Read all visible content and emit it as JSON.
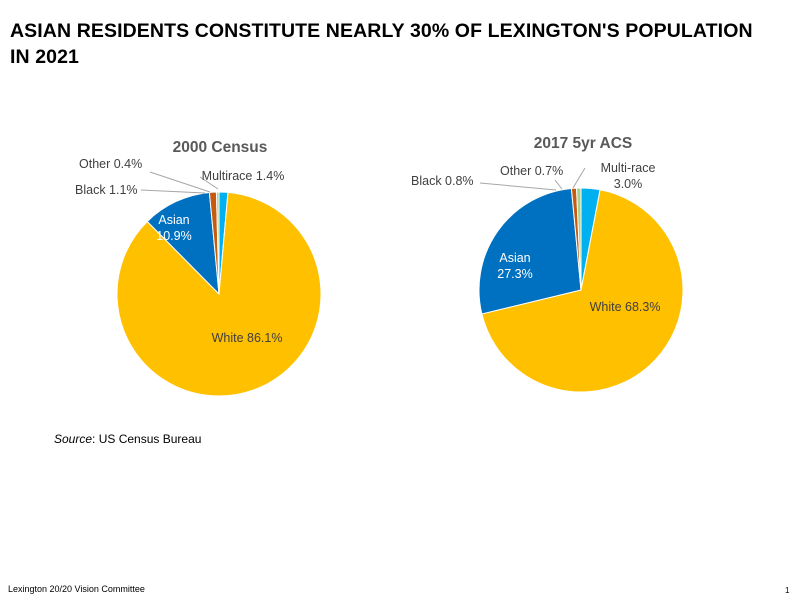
{
  "slide": {
    "title": "ASIAN RESIDENTS CONSTITUTE NEARLY 30% OF LEXINGTON'S POPULATION IN 2021",
    "source_label": "Source",
    "source_text": ": US Census Bureau",
    "footer": "Lexington 20/20 Vision Committee",
    "page_number": "1"
  },
  "colors": {
    "white": "#FFC000",
    "asian": "#0070C0",
    "black": "#C55A11",
    "other": "#A9D18E",
    "multi": "#00B0F0"
  },
  "chart_data": [
    {
      "type": "pie",
      "title": "2000 Census",
      "slices": [
        {
          "key": "multi",
          "label": "Multirace",
          "text": "Multirace 1.4%",
          "value": 1.4
        },
        {
          "key": "white",
          "label": "White",
          "text": "White 86.1%",
          "value": 86.1
        },
        {
          "key": "asian",
          "label": "Asian",
          "text": [
            "Asian",
            "10.9%"
          ],
          "value": 10.9
        },
        {
          "key": "black",
          "label": "Black",
          "text": "Black 1.1%",
          "value": 1.1
        },
        {
          "key": "other",
          "label": "Other",
          "text": "Other 0.4%",
          "value": 0.4
        }
      ]
    },
    {
      "type": "pie",
      "title": "2017 5yr ACS",
      "slices": [
        {
          "key": "multi",
          "label": "Multi-race",
          "text": [
            "Multi-race",
            "3.0%"
          ],
          "value": 3.0
        },
        {
          "key": "white",
          "label": "White",
          "text": "White 68.3%",
          "value": 68.3
        },
        {
          "key": "asian",
          "label": "Asian",
          "text": [
            "Asian",
            "27.3%"
          ],
          "value": 27.3
        },
        {
          "key": "black",
          "label": "Black",
          "text": "Black  0.8%",
          "value": 0.8
        },
        {
          "key": "other",
          "label": "Other",
          "text": "Other 0.7%",
          "value": 0.7
        }
      ]
    }
  ]
}
